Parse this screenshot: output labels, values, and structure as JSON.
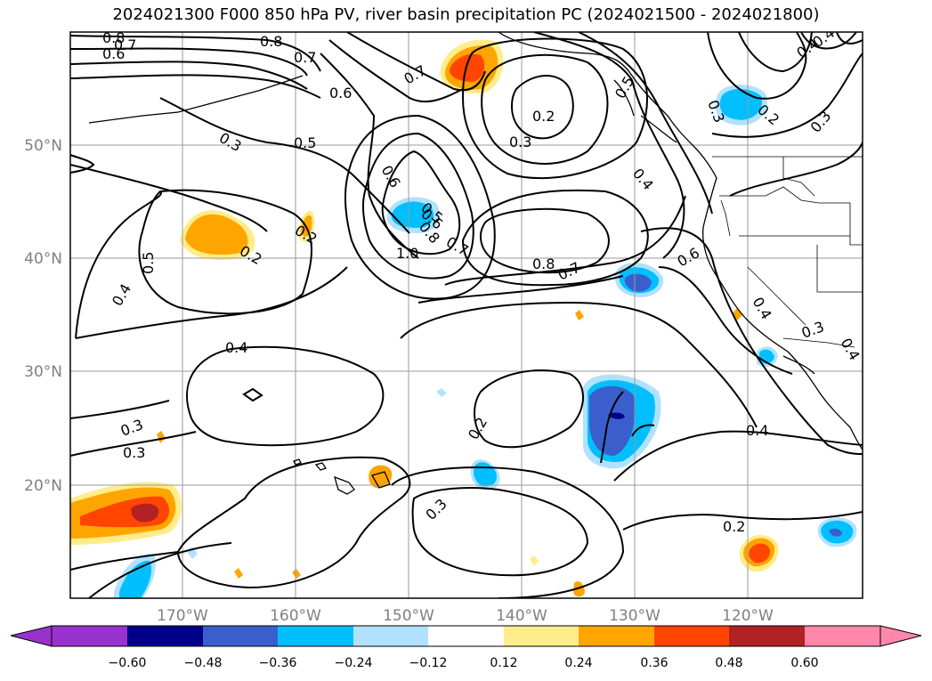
{
  "title": "2024021300 F000 850 hPa PV, river basin precipitation PC (2024021500 - 2024021800)",
  "lon_ticks": [
    "170°W",
    "160°W",
    "150°W",
    "140°W",
    "130°W",
    "120°W"
  ],
  "lat_ticks": [
    "50°N",
    "40°N",
    "30°N",
    "20°N"
  ],
  "contour_labels": [
    "0.8",
    "0.7",
    "0.6",
    "0.8",
    "0.7",
    "0.6",
    "0.3",
    "0.5",
    "0.6",
    "0.7",
    "0.2",
    "0.3",
    "0.5",
    "0.4",
    "0.2",
    "0.3",
    "0.4",
    "0.4",
    "0.3",
    "0.6",
    "0.5",
    "1.0",
    "0.8",
    "0.7",
    "0.8",
    "0.7",
    "0.6",
    "0.2",
    "0.5",
    "0.4",
    "0.2",
    "0.4",
    "0.4",
    "0.3",
    "0.2",
    "0.4",
    "0.3",
    "0.3",
    "0.2",
    "0.3",
    "0.4"
  ],
  "colorbar": {
    "ticks": [
      "−0.60",
      "−0.48",
      "−0.36",
      "−0.24",
      "−0.12",
      "0.12",
      "0.24",
      "0.36",
      "0.48",
      "0.60"
    ],
    "colors": [
      "#9932cc",
      "#00008b",
      "#3a5fcd",
      "#00bfff",
      "#b0e2ff",
      "#ffffff",
      "#ffec8b",
      "#ffa500",
      "#ff4500",
      "#b22222",
      "#ff88aa"
    ]
  }
}
